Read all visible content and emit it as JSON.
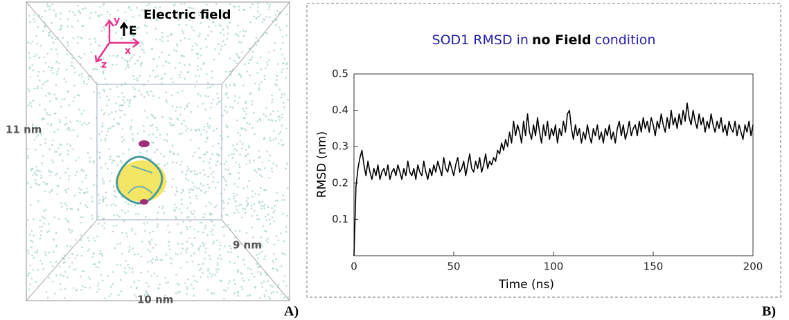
{
  "left_panel": {
    "title": "Electric field",
    "field_label": "E",
    "axis_x": "x",
    "axis_y": "y",
    "axis_z": "z",
    "height_label": "11 nm",
    "depth_label": "9 nm",
    "width_label": "10 nm",
    "panel_label": "A)"
  },
  "chart_data": {
    "type": "line",
    "title_parts": [
      {
        "text": "SOD1 RMSD in",
        "color": "#1f1fa8",
        "bold": false
      },
      {
        "text": "no Field",
        "color": "#000000",
        "bold": true
      },
      {
        "text": "condition",
        "color": "#1f1fa8",
        "bold": false
      }
    ],
    "x_label": "Time (ns)",
    "y_label": "RMSD (nm)",
    "panel_label": "B)",
    "color": "#000000",
    "xlim": [
      0,
      200
    ],
    "xticks": [
      0,
      50,
      100,
      150,
      200
    ],
    "ylim": [
      0,
      0.5
    ],
    "yticks": [
      0.1,
      0.2,
      0.3,
      0.4,
      0.5
    ],
    "grid": false,
    "x": [
      0,
      1,
      2,
      3,
      4,
      5,
      6,
      7,
      8,
      9,
      10,
      11,
      12,
      13,
      14,
      15,
      16,
      17,
      18,
      19,
      20,
      21,
      22,
      23,
      24,
      25,
      26,
      27,
      28,
      29,
      30,
      31,
      32,
      33,
      34,
      35,
      36,
      37,
      38,
      39,
      40,
      41,
      42,
      43,
      44,
      45,
      46,
      47,
      48,
      49,
      50,
      51,
      52,
      53,
      54,
      55,
      56,
      57,
      58,
      59,
      60,
      61,
      62,
      63,
      64,
      65,
      66,
      67,
      68,
      69,
      70,
      71,
      72,
      73,
      74,
      75,
      76,
      77,
      78,
      79,
      80,
      81,
      82,
      83,
      84,
      85,
      86,
      87,
      88,
      89,
      90,
      91,
      92,
      93,
      94,
      95,
      96,
      97,
      98,
      99,
      100,
      101,
      102,
      103,
      104,
      105,
      106,
      107,
      108,
      109,
      110,
      111,
      112,
      113,
      114,
      115,
      116,
      117,
      118,
      119,
      120,
      121,
      122,
      123,
      124,
      125,
      126,
      127,
      128,
      129,
      130,
      131,
      132,
      133,
      134,
      135,
      136,
      137,
      138,
      139,
      140,
      141,
      142,
      143,
      144,
      145,
      146,
      147,
      148,
      149,
      150,
      151,
      152,
      153,
      154,
      155,
      156,
      157,
      158,
      159,
      160,
      161,
      162,
      163,
      164,
      165,
      166,
      167,
      168,
      169,
      170,
      171,
      172,
      173,
      174,
      175,
      176,
      177,
      178,
      179,
      180,
      181,
      182,
      183,
      184,
      185,
      186,
      187,
      188,
      189,
      190,
      191,
      192,
      193,
      194,
      195,
      196,
      197,
      198,
      199,
      200
    ],
    "values": [
      0.0,
      0.19,
      0.24,
      0.27,
      0.29,
      0.25,
      0.22,
      0.26,
      0.23,
      0.21,
      0.24,
      0.22,
      0.25,
      0.21,
      0.23,
      0.24,
      0.22,
      0.25,
      0.21,
      0.23,
      0.24,
      0.22,
      0.25,
      0.23,
      0.21,
      0.24,
      0.22,
      0.26,
      0.23,
      0.22,
      0.24,
      0.21,
      0.25,
      0.23,
      0.22,
      0.26,
      0.23,
      0.21,
      0.24,
      0.22,
      0.25,
      0.23,
      0.26,
      0.24,
      0.22,
      0.27,
      0.24,
      0.23,
      0.26,
      0.24,
      0.22,
      0.25,
      0.27,
      0.23,
      0.24,
      0.26,
      0.22,
      0.25,
      0.28,
      0.24,
      0.23,
      0.26,
      0.24,
      0.27,
      0.23,
      0.25,
      0.28,
      0.24,
      0.26,
      0.25,
      0.27,
      0.26,
      0.29,
      0.28,
      0.31,
      0.29,
      0.32,
      0.3,
      0.34,
      0.31,
      0.37,
      0.33,
      0.36,
      0.34,
      0.31,
      0.37,
      0.33,
      0.39,
      0.34,
      0.32,
      0.36,
      0.33,
      0.38,
      0.34,
      0.31,
      0.36,
      0.33,
      0.37,
      0.32,
      0.35,
      0.33,
      0.36,
      0.31,
      0.35,
      0.33,
      0.37,
      0.34,
      0.39,
      0.4,
      0.35,
      0.32,
      0.36,
      0.33,
      0.35,
      0.31,
      0.34,
      0.32,
      0.36,
      0.33,
      0.31,
      0.35,
      0.33,
      0.36,
      0.32,
      0.34,
      0.31,
      0.35,
      0.33,
      0.36,
      0.32,
      0.34,
      0.31,
      0.35,
      0.37,
      0.33,
      0.36,
      0.32,
      0.34,
      0.37,
      0.33,
      0.35,
      0.36,
      0.33,
      0.37,
      0.34,
      0.38,
      0.35,
      0.37,
      0.34,
      0.38,
      0.36,
      0.33,
      0.37,
      0.35,
      0.39,
      0.36,
      0.34,
      0.38,
      0.35,
      0.4,
      0.36,
      0.38,
      0.35,
      0.39,
      0.36,
      0.4,
      0.37,
      0.42,
      0.38,
      0.36,
      0.4,
      0.37,
      0.35,
      0.39,
      0.36,
      0.38,
      0.34,
      0.37,
      0.35,
      0.39,
      0.36,
      0.34,
      0.37,
      0.35,
      0.38,
      0.34,
      0.36,
      0.33,
      0.37,
      0.35,
      0.34,
      0.37,
      0.33,
      0.36,
      0.34,
      0.32,
      0.36,
      0.34,
      0.37,
      0.33,
      0.36
    ]
  }
}
